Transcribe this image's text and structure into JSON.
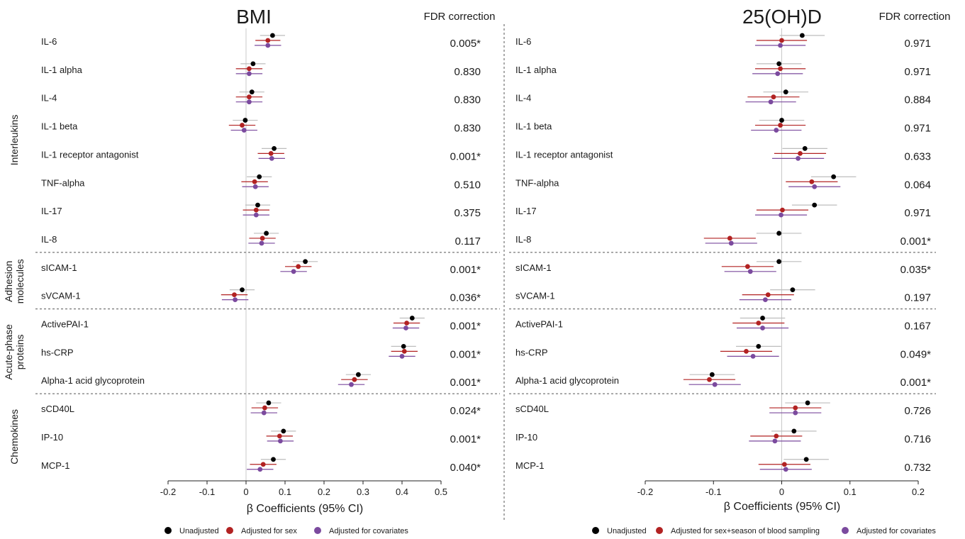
{
  "markers": [
    "Unadjusted",
    "Adjusted for sex",
    "Adjusted for covariates"
  ],
  "group_labels": [
    {
      "text": "Interleukins",
      "lines": [
        "Interleukins"
      ]
    },
    {
      "text": "Adhesion molecules",
      "lines": [
        "Adhesion",
        "molecules"
      ]
    },
    {
      "text": "Acute-phase proteins",
      "lines": [
        "Acute-phase",
        "proteins"
      ]
    },
    {
      "text": "Chemokines",
      "lines": [
        "Chemokines"
      ]
    }
  ],
  "colors": {
    "unadjusted": "#000000",
    "adjusted_sex": "#b22222",
    "adjusted_cov": "#7b4a9e",
    "ci_unadjusted": "#bdbdbd",
    "zero_line": "#c8c8c8"
  },
  "chart_data": [
    {
      "type": "forest",
      "title": "BMI",
      "fdr_header": "FDR correction",
      "xlabel": "β Coefficients (95% CI)",
      "xlim": [
        -0.2,
        0.5
      ],
      "xticks": [
        -0.2,
        -0.1,
        0,
        0.1,
        0.2,
        0.3,
        0.4,
        0.5
      ],
      "xtick_labels": [
        "-0.2",
        "-0.1",
        "0",
        "0.1",
        "0.2",
        "0.3",
        "0.4",
        "0.5"
      ],
      "legend": [
        "Unadjusted",
        "Adjusted for sex",
        "Adjusted for covariates"
      ],
      "rows": [
        {
          "label": "IL-6",
          "fdr": "0.005*",
          "est": [
            0.068,
            0.056,
            0.056
          ],
          "lo": [
            0.036,
            0.024,
            0.022
          ],
          "hi": [
            0.1,
            0.088,
            0.09
          ]
        },
        {
          "label": "IL-1 alpha",
          "fdr": "0.830",
          "est": [
            0.018,
            0.008,
            0.008
          ],
          "lo": [
            -0.014,
            -0.026,
            -0.026
          ],
          "hi": [
            0.05,
            0.042,
            0.042
          ]
        },
        {
          "label": "IL-4",
          "fdr": "0.830",
          "est": [
            0.015,
            0.008,
            0.008
          ],
          "lo": [
            -0.017,
            -0.026,
            -0.026
          ],
          "hi": [
            0.047,
            0.042,
            0.042
          ]
        },
        {
          "label": "IL-1 beta",
          "fdr": "0.830",
          "est": [
            -0.002,
            -0.01,
            -0.005
          ],
          "lo": [
            -0.034,
            -0.044,
            -0.039
          ],
          "hi": [
            0.03,
            0.024,
            0.029
          ]
        },
        {
          "label": "IL-1 receptor antagonist",
          "fdr": "0.001*",
          "est": [
            0.072,
            0.064,
            0.066
          ],
          "lo": [
            0.04,
            0.03,
            0.032
          ],
          "hi": [
            0.104,
            0.098,
            0.1
          ]
        },
        {
          "label": "TNF-alpha",
          "fdr": "0.510",
          "est": [
            0.034,
            0.022,
            0.024
          ],
          "lo": [
            0.002,
            -0.012,
            -0.01
          ],
          "hi": [
            0.066,
            0.056,
            0.058
          ]
        },
        {
          "label": "IL-17",
          "fdr": "0.375",
          "est": [
            0.03,
            0.026,
            0.026
          ],
          "lo": [
            -0.002,
            -0.008,
            -0.008
          ],
          "hi": [
            0.062,
            0.06,
            0.06
          ]
        },
        {
          "label": "IL-8",
          "fdr": "0.117",
          "est": [
            0.052,
            0.042,
            0.04
          ],
          "lo": [
            0.02,
            0.008,
            0.006
          ],
          "hi": [
            0.084,
            0.076,
            0.074
          ]
        },
        {
          "label": "sICAM-1",
          "fdr": "0.001*",
          "est": [
            0.152,
            0.134,
            0.122
          ],
          "lo": [
            0.12,
            0.1,
            0.088
          ],
          "hi": [
            0.184,
            0.168,
            0.156
          ]
        },
        {
          "label": "sVCAM-1",
          "fdr": "0.036*",
          "est": [
            -0.01,
            -0.03,
            -0.028
          ],
          "lo": [
            -0.042,
            -0.064,
            -0.062
          ],
          "hi": [
            0.022,
            0.004,
            0.006
          ]
        },
        {
          "label": "ActivePAI-1",
          "fdr": "0.001*",
          "est": [
            0.426,
            0.412,
            0.41
          ],
          "lo": [
            0.394,
            0.378,
            0.376
          ],
          "hi": [
            0.458,
            0.446,
            0.444
          ]
        },
        {
          "label": "hs-CRP",
          "fdr": "0.001*",
          "est": [
            0.404,
            0.406,
            0.4
          ],
          "lo": [
            0.372,
            0.372,
            0.366
          ],
          "hi": [
            0.436,
            0.44,
            0.434
          ]
        },
        {
          "label": "Alpha-1 acid glycoprotein",
          "fdr": "0.001*",
          "est": [
            0.288,
            0.278,
            0.27
          ],
          "lo": [
            0.256,
            0.244,
            0.236
          ],
          "hi": [
            0.32,
            0.312,
            0.304
          ]
        },
        {
          "label": "sCD40L",
          "fdr": "0.024*",
          "est": [
            0.058,
            0.048,
            0.046
          ],
          "lo": [
            0.026,
            0.014,
            0.012
          ],
          "hi": [
            0.09,
            0.082,
            0.08
          ]
        },
        {
          "label": "IP-10",
          "fdr": "0.001*",
          "est": [
            0.096,
            0.086,
            0.088
          ],
          "lo": [
            0.064,
            0.052,
            0.054
          ],
          "hi": [
            0.128,
            0.12,
            0.122
          ]
        },
        {
          "label": "MCP-1",
          "fdr": "0.040*",
          "est": [
            0.07,
            0.044,
            0.036
          ],
          "lo": [
            0.038,
            0.01,
            0.002
          ],
          "hi": [
            0.102,
            0.078,
            0.07
          ]
        }
      ]
    },
    {
      "type": "forest",
      "title": "25(OH)D",
      "fdr_header": "FDR correction",
      "xlabel": "β Coefficients (95% CI)",
      "xlim": [
        -0.2,
        0.2
      ],
      "xticks": [
        -0.2,
        -0.1,
        0,
        0.1,
        0.2
      ],
      "xtick_labels": [
        "-0.2",
        "-0.1",
        "0",
        "0.1",
        "0.2"
      ],
      "legend": [
        "Unadjusted",
        "Adjusted for sex+season of blood sampling",
        "Adjusted for covariates"
      ],
      "rows": [
        {
          "label": "IL-6",
          "fdr": "0.971",
          "est": [
            0.03,
            0.0,
            -0.002
          ],
          "lo": [
            -0.003,
            -0.037,
            -0.039
          ],
          "hi": [
            0.063,
            0.037,
            0.035
          ]
        },
        {
          "label": "IL-1 alpha",
          "fdr": "0.971",
          "est": [
            -0.004,
            -0.002,
            -0.006
          ],
          "lo": [
            -0.037,
            -0.039,
            -0.043
          ],
          "hi": [
            0.029,
            0.035,
            0.031
          ]
        },
        {
          "label": "IL-4",
          "fdr": "0.884",
          "est": [
            0.006,
            -0.012,
            -0.016
          ],
          "lo": [
            -0.027,
            -0.05,
            -0.053
          ],
          "hi": [
            0.039,
            0.026,
            0.021
          ]
        },
        {
          "label": "IL-1 beta",
          "fdr": "0.971",
          "est": [
            0.0,
            -0.002,
            -0.008
          ],
          "lo": [
            -0.033,
            -0.039,
            -0.045
          ],
          "hi": [
            0.033,
            0.035,
            0.029
          ]
        },
        {
          "label": "IL-1 receptor antagonist",
          "fdr": "0.633",
          "est": [
            0.034,
            0.027,
            0.024
          ],
          "lo": [
            0.001,
            -0.011,
            -0.014
          ],
          "hi": [
            0.067,
            0.065,
            0.062
          ]
        },
        {
          "label": "TNF-alpha",
          "fdr": "0.064",
          "est": [
            0.076,
            0.044,
            0.048
          ],
          "lo": [
            0.043,
            0.006,
            0.01
          ],
          "hi": [
            0.109,
            0.082,
            0.086
          ]
        },
        {
          "label": "IL-17",
          "fdr": "0.971",
          "est": [
            0.048,
            0.001,
            -0.001
          ],
          "lo": [
            0.015,
            -0.037,
            -0.039
          ],
          "hi": [
            0.081,
            0.039,
            0.037
          ]
        },
        {
          "label": "IL-8",
          "fdr": "0.001*",
          "est": [
            -0.004,
            -0.076,
            -0.074
          ],
          "lo": [
            -0.037,
            -0.114,
            -0.112
          ],
          "hi": [
            0.029,
            -0.038,
            -0.036
          ]
        },
        {
          "label": "sICAM-1",
          "fdr": "0.035*",
          "est": [
            -0.004,
            -0.05,
            -0.046
          ],
          "lo": [
            -0.037,
            -0.088,
            -0.084
          ],
          "hi": [
            0.029,
            -0.012,
            -0.008
          ]
        },
        {
          "label": "sVCAM-1",
          "fdr": "0.197",
          "est": [
            0.016,
            -0.02,
            -0.024
          ],
          "lo": [
            -0.017,
            -0.058,
            -0.062
          ],
          "hi": [
            0.049,
            0.018,
            0.014
          ]
        },
        {
          "label": "ActivePAI-1",
          "fdr": "0.167",
          "est": [
            -0.028,
            -0.034,
            -0.028
          ],
          "lo": [
            -0.061,
            -0.072,
            -0.066
          ],
          "hi": [
            0.005,
            0.004,
            0.01
          ]
        },
        {
          "label": "hs-CRP",
          "fdr": "0.049*",
          "est": [
            -0.034,
            -0.052,
            -0.042
          ],
          "lo": [
            -0.067,
            -0.09,
            -0.08
          ],
          "hi": [
            -0.001,
            -0.014,
            -0.004
          ]
        },
        {
          "label": "Alpha-1 acid glycoprotein",
          "fdr": "0.001*",
          "est": [
            -0.102,
            -0.106,
            -0.098
          ],
          "lo": [
            -0.135,
            -0.144,
            -0.136
          ],
          "hi": [
            -0.069,
            -0.068,
            -0.06
          ]
        },
        {
          "label": "sCD40L",
          "fdr": "0.726",
          "est": [
            0.038,
            0.02,
            0.02
          ],
          "lo": [
            0.005,
            -0.018,
            -0.018
          ],
          "hi": [
            0.071,
            0.058,
            0.058
          ]
        },
        {
          "label": "IP-10",
          "fdr": "0.716",
          "est": [
            0.018,
            -0.008,
            -0.01
          ],
          "lo": [
            -0.015,
            -0.046,
            -0.048
          ],
          "hi": [
            0.051,
            0.03,
            0.028
          ]
        },
        {
          "label": "MCP-1",
          "fdr": "0.732",
          "est": [
            0.036,
            0.004,
            0.006
          ],
          "lo": [
            0.003,
            -0.034,
            -0.032
          ],
          "hi": [
            0.069,
            0.042,
            0.044
          ]
        }
      ]
    }
  ]
}
